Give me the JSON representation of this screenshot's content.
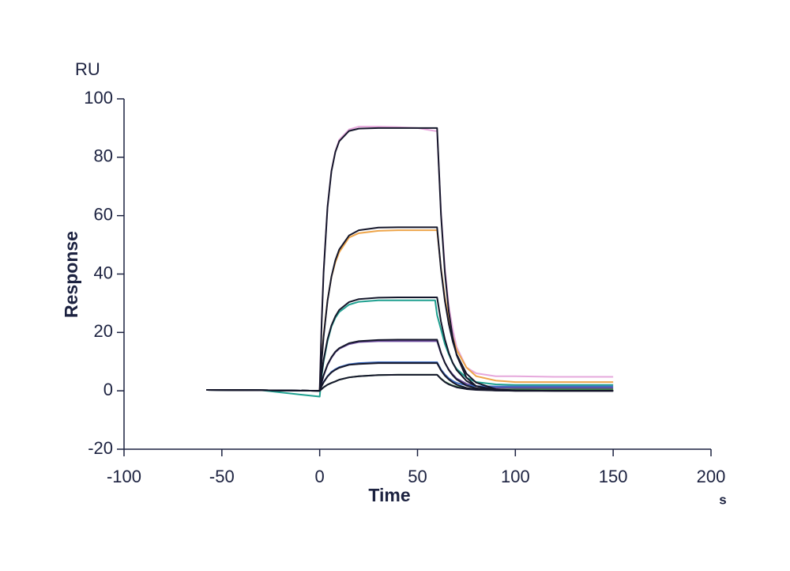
{
  "chart_data": {
    "type": "line",
    "unit_label": "RU",
    "ylabel": "Response",
    "xlabel": "Time",
    "x_unit": "s",
    "xlim": [
      -100,
      200
    ],
    "xticks": [
      -100,
      -50,
      0,
      50,
      100,
      150,
      200
    ],
    "ylim": [
      -20,
      100
    ],
    "yticks": [
      -20,
      0,
      20,
      40,
      60,
      80,
      100
    ],
    "x": [
      -58,
      -30,
      0,
      1,
      2,
      4,
      6,
      8,
      10,
      15,
      20,
      30,
      40,
      50,
      59,
      60,
      62,
      64,
      66,
      68,
      70,
      75,
      80,
      90,
      100,
      120,
      150
    ],
    "series": [
      {
        "color": "#e6a8dc",
        "values": [
          0.3,
          0.2,
          0,
          24,
          41,
          63,
          75.5,
          82,
          86,
          89.5,
          90.5,
          90.5,
          90.3,
          90,
          89,
          89,
          61,
          42,
          29,
          21,
          15,
          8,
          6,
          5,
          5,
          4.8,
          4.8
        ]
      },
      {
        "color": "#eea54a",
        "values": [
          0.3,
          0.2,
          0,
          11,
          19,
          31,
          39,
          44,
          47.5,
          52.5,
          54,
          54.8,
          55,
          55,
          55,
          55,
          42,
          32,
          24.5,
          18.5,
          14,
          8,
          5,
          3.5,
          3,
          3,
          3
        ]
      },
      {
        "color": "#1fa090",
        "values": [
          0.3,
          0.2,
          -2,
          5,
          10,
          17,
          22,
          25,
          27,
          29.5,
          30.5,
          31,
          31,
          31,
          31,
          26,
          21,
          16,
          12.5,
          9.5,
          7.5,
          4.5,
          3,
          2.2,
          2,
          2,
          2
        ]
      },
      {
        "color": "#6a4a9a",
        "values": [
          0.3,
          0.2,
          0,
          2.8,
          5.2,
          8.8,
          11.3,
          13.2,
          14.4,
          16,
          16.7,
          17,
          17,
          17,
          17,
          17,
          12.8,
          9.6,
          7.3,
          5.6,
          4.2,
          2.4,
          1.6,
          1.1,
          1,
          1,
          1
        ]
      },
      {
        "color": "#3f6fc4",
        "values": [
          0.3,
          0.2,
          0,
          1.7,
          3,
          5,
          6.5,
          7.4,
          8.1,
          9.1,
          9.5,
          9.8,
          9.8,
          9.8,
          9.8,
          9.8,
          7.3,
          5.6,
          4.3,
          3.4,
          2.7,
          1.9,
          1.6,
          1.5,
          1.5,
          1.5,
          1.5
        ]
      },
      {
        "color": "#3f8a4a",
        "values": [
          0.3,
          0.2,
          0,
          0.6,
          1.2,
          2.1,
          2.7,
          3.2,
          3.8,
          4.6,
          5,
          5.4,
          5.5,
          5.5,
          5.5,
          5.5,
          4.2,
          3.1,
          2.4,
          1.8,
          1.4,
          0.9,
          0.6,
          0.5,
          0.5,
          0.5,
          0.5
        ]
      },
      {
        "color": "#15172b",
        "values": [
          0.3,
          0.2,
          0,
          23.3,
          40.6,
          62.9,
          75.2,
          81.8,
          85.5,
          89,
          89.8,
          90,
          90,
          90,
          90,
          90,
          60.3,
          40.4,
          27.1,
          18.2,
          12.2,
          4.5,
          1.6,
          0.2,
          0.1,
          0,
          0
        ]
      },
      {
        "color": "#15172b",
        "values": [
          0.3,
          0.2,
          0,
          10.2,
          18.5,
          30.8,
          39.1,
          44.7,
          48.4,
          53.2,
          55,
          55.9,
          56,
          56,
          56,
          56,
          41.5,
          30.7,
          22.8,
          16.9,
          12.5,
          5.9,
          2.8,
          0.6,
          0.1,
          0,
          0
        ]
      },
      {
        "color": "#15172b",
        "values": [
          0.3,
          0.2,
          0,
          5.8,
          10.6,
          17.6,
          22.4,
          25.5,
          27.7,
          30.4,
          31.4,
          31.9,
          32,
          32,
          32,
          32,
          23.7,
          17.6,
          13,
          9.6,
          7.1,
          3.4,
          1.6,
          0.4,
          0.1,
          0,
          0
        ]
      },
      {
        "color": "#15172b",
        "values": [
          0.3,
          0.2,
          0,
          2.9,
          5.3,
          9,
          11.5,
          13.4,
          14.6,
          16.3,
          17,
          17.4,
          17.5,
          17.5,
          17.5,
          17.5,
          13,
          9.6,
          7.1,
          5.3,
          3.9,
          1.8,
          0.9,
          0.2,
          0,
          0,
          0
        ]
      },
      {
        "color": "#15172b",
        "values": [
          0.3,
          0.2,
          0,
          1.6,
          2.9,
          4.9,
          6.3,
          7.2,
          7.9,
          8.9,
          9.2,
          9.5,
          9.5,
          9.5,
          9.5,
          9.5,
          7,
          5.2,
          3.9,
          2.9,
          2.1,
          1,
          0.5,
          0.1,
          0,
          0,
          0
        ]
      },
      {
        "color": "#15172b",
        "values": [
          0.3,
          0.2,
          0,
          0.6,
          1.2,
          2.1,
          2.7,
          3.2,
          3.8,
          4.6,
          5,
          5.4,
          5.5,
          5.5,
          5.5,
          5.5,
          4.1,
          3,
          2.2,
          1.7,
          1.2,
          0.6,
          0.3,
          0.1,
          0,
          0,
          0
        ]
      }
    ]
  }
}
